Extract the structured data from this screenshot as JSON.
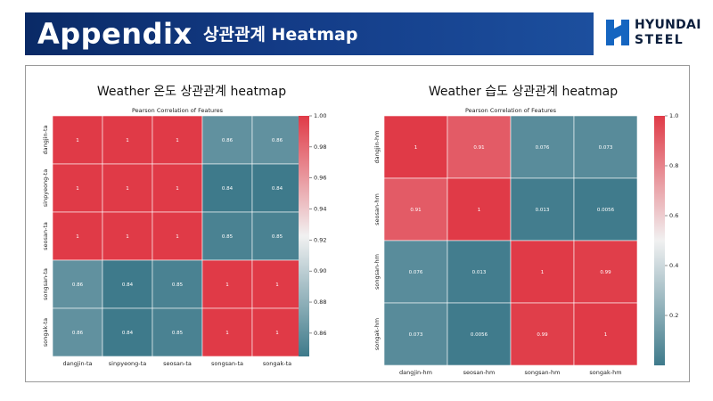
{
  "header": {
    "title": "Appendix",
    "subtitle": "상관관계 Heatmap",
    "logo_line1": "HYUNDAI",
    "logo_line2": "STEEL",
    "banner_color": "#133b86"
  },
  "colors": {
    "low": "#3e7a8b",
    "mid": "#f1f1f1",
    "high": "#e03a47"
  },
  "chart_data": [
    {
      "type": "heatmap",
      "heading": "Weather 온도 상관관계 heatmap",
      "title": "Pearson Correlation of Features",
      "row_labels": [
        "dangjin-ta",
        "sinpyeong-ta",
        "seosan-ta",
        "songsan-ta",
        "songak-ta"
      ],
      "col_labels": [
        "dangjin-ta",
        "sinpyeong-ta",
        "seosan-ta",
        "songsan-ta",
        "songak-ta"
      ],
      "values": [
        [
          1,
          1,
          1,
          0.86,
          0.86
        ],
        [
          1,
          1,
          1,
          0.84,
          0.84
        ],
        [
          1,
          1,
          1,
          0.85,
          0.85
        ],
        [
          0.86,
          0.84,
          0.85,
          1,
          1
        ],
        [
          0.86,
          0.84,
          0.85,
          1,
          1
        ]
      ],
      "cell_text": [
        [
          "1",
          "1",
          "1",
          "0.86",
          "0.86"
        ],
        [
          "1",
          "1",
          "1",
          "0.84",
          "0.84"
        ],
        [
          "1",
          "1",
          "1",
          "0.85",
          "0.85"
        ],
        [
          "0.86",
          "0.84",
          "0.85",
          "1",
          "1"
        ],
        [
          "0.86",
          "0.84",
          "0.85",
          "1",
          "1"
        ]
      ],
      "color_range": [
        0.845,
        1.0
      ],
      "colorbar_ticks": [
        1.0,
        0.98,
        0.96,
        0.94,
        0.92,
        0.9,
        0.88,
        0.86
      ],
      "colorbar_tick_labels": [
        "1.00",
        "0.98",
        "0.96",
        "0.94",
        "0.92",
        "0.90",
        "0.88",
        "0.86"
      ]
    },
    {
      "type": "heatmap",
      "heading": "Weather 습도 상관관계 heatmap",
      "title": "Pearson Correlation of Features",
      "row_labels": [
        "dangjin-hm",
        "seosan-hm",
        "songsan-hm",
        "songak-hm"
      ],
      "col_labels": [
        "dangjin-hm",
        "seosan-hm",
        "songsan-hm",
        "songak-hm"
      ],
      "values": [
        [
          1,
          0.91,
          0.076,
          0.073
        ],
        [
          0.91,
          1,
          0.013,
          0.0056
        ],
        [
          0.076,
          0.013,
          1,
          0.99
        ],
        [
          0.073,
          0.0056,
          0.99,
          1
        ]
      ],
      "cell_text": [
        [
          "1",
          "0.91",
          "0.076",
          "0.073"
        ],
        [
          "0.91",
          "1",
          "0.013",
          "0.0056"
        ],
        [
          "0.076",
          "0.013",
          "1",
          "0.99"
        ],
        [
          "0.073",
          "0.0056",
          "0.99",
          "1"
        ]
      ],
      "color_range": [
        0.0,
        1.0
      ],
      "colorbar_ticks": [
        1.0,
        0.8,
        0.6,
        0.4,
        0.2
      ],
      "colorbar_tick_labels": [
        "1.0",
        "0.8",
        "0.6",
        "0.4",
        "0.2"
      ]
    }
  ]
}
